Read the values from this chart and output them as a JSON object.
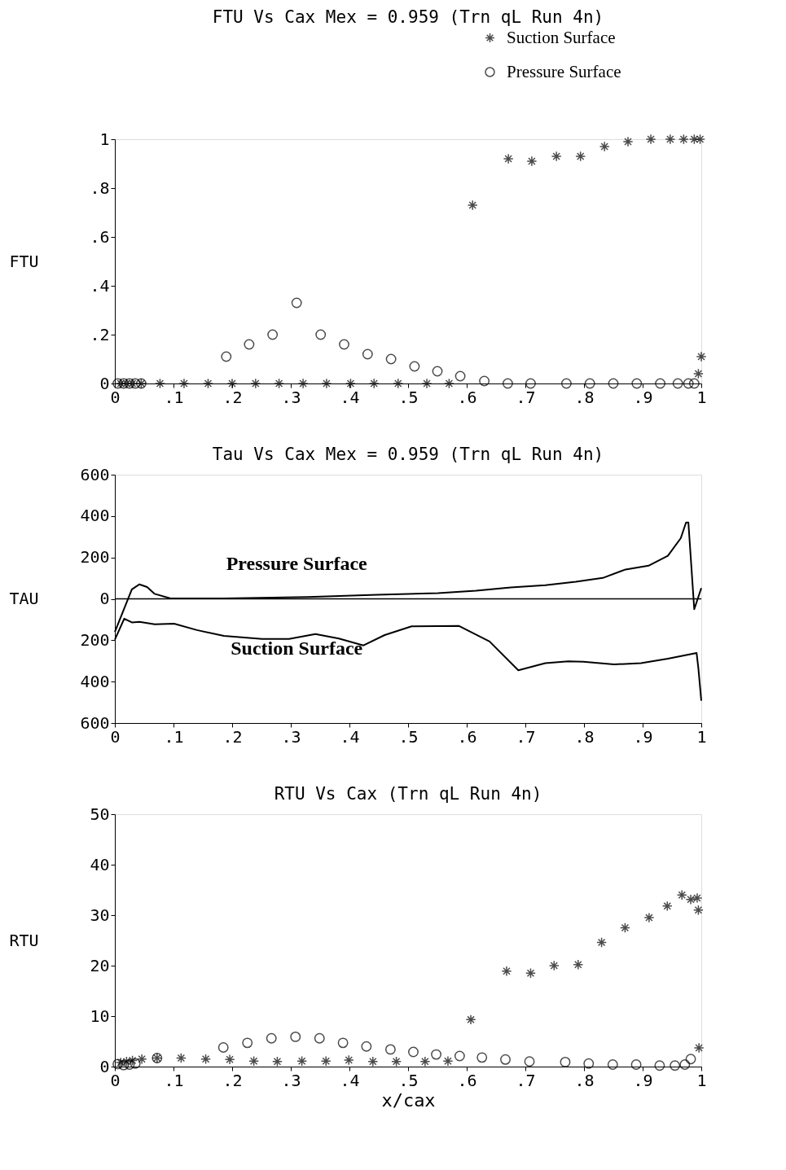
{
  "chart_data": [
    {
      "type": "scatter",
      "title": "FTU Vs Cax  Mex = 0.959 (Trn qL  Run 4n)",
      "ylabel": "FTU",
      "legend": "top right",
      "grid": false,
      "xlim": [
        0,
        1
      ],
      "ylim": [
        0,
        1
      ],
      "xticks": [
        0,
        {
          "value": 0.1,
          "label": ".1"
        },
        {
          "value": 0.2,
          "label": ".2"
        },
        {
          "value": 0.3,
          "label": ".3"
        },
        {
          "value": 0.4,
          "label": ".4"
        },
        {
          "value": 0.5,
          "label": ".5"
        },
        {
          "value": 0.6,
          "label": ".6"
        },
        {
          "value": 0.7,
          "label": ".7"
        },
        {
          "value": 0.8,
          "label": ".8"
        },
        {
          "value": 0.9,
          "label": ".9"
        },
        1
      ],
      "yticks": [
        0,
        {
          "value": 0.2,
          "label": ".2"
        },
        {
          "value": 0.4,
          "label": ".4"
        },
        {
          "value": 0.6,
          "label": ".6"
        },
        {
          "value": 0.8,
          "label": ".8"
        },
        1
      ],
      "series": [
        {
          "name": "Suction Surface",
          "color": "#000000",
          "marker": "cross",
          "x": [
            0.01,
            0.02,
            0.03,
            0.045,
            0.077,
            0.118,
            0.159,
            0.2,
            0.24,
            0.28,
            0.321,
            0.361,
            0.402,
            0.442,
            0.483,
            0.532,
            0.57,
            0.61,
            0.671,
            0.711,
            0.753,
            0.794,
            0.835,
            0.875,
            0.914,
            0.947,
            0.97,
            0.988,
            0.998,
            0.995,
            1.0
          ],
          "values": [
            0,
            0,
            0,
            0,
            0,
            0,
            0,
            0,
            0,
            0,
            0,
            0,
            0,
            0,
            0,
            0,
            0,
            0.73,
            0.92,
            0.91,
            0.93,
            0.93,
            0.97,
            0.99,
            1,
            1,
            1,
            1,
            1,
            0.04,
            0.11
          ]
        },
        {
          "name": "Pressure Surface",
          "color": "#000000",
          "marker": "circle",
          "x": [
            0.005,
            0.015,
            0.025,
            0.035,
            0.045,
            0.19,
            0.229,
            0.269,
            0.31,
            0.351,
            0.391,
            0.431,
            0.471,
            0.511,
            0.55,
            0.589,
            0.63,
            0.67,
            0.709,
            0.77,
            0.81,
            0.85,
            0.89,
            0.93,
            0.96,
            0.978,
            0.988
          ],
          "values": [
            0,
            0,
            0,
            0,
            0,
            0.11,
            0.16,
            0.2,
            0.33,
            0.2,
            0.16,
            0.12,
            0.1,
            0.07,
            0.05,
            0.03,
            0.01,
            0,
            0,
            0,
            0,
            0,
            0,
            0,
            0,
            0,
            0
          ]
        }
      ]
    },
    {
      "type": "line",
      "title": "Tau Vs Cax  Mex = 0.959 (Trn qL  Run 4n)",
      "ylabel": "TAU",
      "grid": false,
      "xlim": [
        0,
        1
      ],
      "ylim": [
        -600,
        600
      ],
      "xticks": [
        0,
        {
          "value": 0.1,
          "label": ".1"
        },
        {
          "value": 0.2,
          "label": ".2"
        },
        {
          "value": 0.3,
          "label": ".3"
        },
        {
          "value": 0.4,
          "label": ".4"
        },
        {
          "value": 0.5,
          "label": ".5"
        },
        {
          "value": 0.6,
          "label": ".6"
        },
        {
          "value": 0.7,
          "label": ".7"
        },
        {
          "value": 0.8,
          "label": ".8"
        },
        {
          "value": 0.9,
          "label": ".9"
        },
        1
      ],
      "yticks": [
        {
          "value": -600,
          "label": "600"
        },
        {
          "value": -400,
          "label": "400"
        },
        {
          "value": -200,
          "label": "200"
        },
        0,
        200,
        400,
        600
      ],
      "ref_lines": [
        {
          "axis": "y",
          "value": 0
        }
      ],
      "series": [
        {
          "name": "Pressure Surface",
          "color": "#000000",
          "x": [
            0,
            0.029,
            0.042,
            0.055,
            0.068,
            0.095,
            0.186,
            0.329,
            0.447,
            0.551,
            0.616,
            0.675,
            0.734,
            0.786,
            0.832,
            0.871,
            0.91,
            0.943,
            0.965,
            0.974,
            0.978,
            0.988,
            1.0
          ],
          "values": [
            -160,
            46,
            70,
            57,
            24,
            2,
            2,
            9,
            20,
            28,
            39,
            55,
            66,
            83,
            101,
            142,
            160,
            208,
            293,
            369,
            369,
            -50,
            52
          ]
        },
        {
          "name": "Suction Surface",
          "color": "#000000",
          "x": [
            0,
            0.016,
            0.029,
            0.042,
            0.068,
            0.101,
            0.14,
            0.186,
            0.251,
            0.297,
            0.342,
            0.382,
            0.424,
            0.46,
            0.506,
            0.587,
            0.639,
            0.688,
            0.734,
            0.773,
            0.799,
            0.851,
            0.897,
            0.943,
            0.992,
            0.995,
            1.0
          ],
          "values": [
            -197,
            -96,
            -114,
            -111,
            -123,
            -120,
            -151,
            -179,
            -194,
            -194,
            -170,
            -192,
            -225,
            -175,
            -133,
            -131,
            -206,
            -345,
            -311,
            -302,
            -304,
            -317,
            -311,
            -289,
            -262,
            -335,
            -492
          ]
        }
      ]
    },
    {
      "type": "scatter",
      "title": "RTU Vs Cax  (Trn qL  Run 4n)",
      "ylabel": "RTU",
      "xlabel": "x/cax",
      "grid": false,
      "xlim": [
        0,
        1
      ],
      "ylim": [
        0,
        50
      ],
      "xticks": [
        0,
        {
          "value": 0.1,
          "label": ".1"
        },
        {
          "value": 0.2,
          "label": ".2"
        },
        {
          "value": 0.3,
          "label": ".3"
        },
        {
          "value": 0.4,
          "label": ".4"
        },
        {
          "value": 0.5,
          "label": ".5"
        },
        {
          "value": 0.6,
          "label": ".6"
        },
        {
          "value": 0.7,
          "label": ".7"
        },
        {
          "value": 0.8,
          "label": ".8"
        },
        {
          "value": 0.9,
          "label": ".9"
        },
        1
      ],
      "yticks": [
        0,
        10,
        20,
        30,
        40,
        50
      ],
      "series": [
        {
          "color": "#000000",
          "marker": "cross",
          "x": [
            0.01,
            0.02,
            0.03,
            0.046,
            0.072,
            0.113,
            0.155,
            0.196,
            0.237,
            0.277,
            0.319,
            0.36,
            0.399,
            0.44,
            0.48,
            0.529,
            0.568,
            0.607,
            0.668,
            0.709,
            0.749,
            0.79,
            0.83,
            0.87,
            0.911,
            0.942,
            0.967,
            0.982,
            0.993,
            0.995,
            0.996
          ],
          "values": [
            0.8,
            1.0,
            1.2,
            1.5,
            1.7,
            1.7,
            1.5,
            1.4,
            1.1,
            1.0,
            1.1,
            1.1,
            1.3,
            1.0,
            1.0,
            1.0,
            1.1,
            9.3,
            18.9,
            18.5,
            20.0,
            20.2,
            24.6,
            27.5,
            29.5,
            31.8,
            34.0,
            33.1,
            33.4,
            31,
            3.7
          ]
        },
        {
          "color": "#000000",
          "marker": "circle",
          "x": [
            0.005,
            0.015,
            0.025,
            0.035,
            0.072,
            0.185,
            0.226,
            0.267,
            0.308,
            0.349,
            0.389,
            0.429,
            0.47,
            0.509,
            0.548,
            0.588,
            0.626,
            0.666,
            0.707,
            0.768,
            0.808,
            0.849,
            0.889,
            0.929,
            0.955,
            0.972,
            0.982
          ],
          "values": [
            0.5,
            0.3,
            0.4,
            0.6,
            1.7,
            3.8,
            4.7,
            5.6,
            5.9,
            5.6,
            4.7,
            4.0,
            3.4,
            2.9,
            2.4,
            2.1,
            1.8,
            1.4,
            1.0,
            0.9,
            0.6,
            0.4,
            0.4,
            0.2,
            0.2,
            0.4,
            1.5
          ]
        }
      ]
    }
  ]
}
